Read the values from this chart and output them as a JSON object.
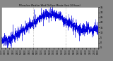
{
  "title": "Milwaukee Weather Wind Chill per Minute (Last 24 Hours)",
  "line_color": "#0000dd",
  "background_color": "#888888",
  "plot_bg_color": "#ffffff",
  "ylim": [
    -5,
    35
  ],
  "ytick_values": [
    -5,
    0,
    5,
    10,
    15,
    20,
    25,
    30,
    35
  ],
  "ytick_labels": [
    "-5",
    "0",
    "5",
    "10",
    "15",
    "20",
    "25",
    "30",
    "35"
  ],
  "num_points": 1440,
  "seed": 42,
  "vline_positions": [
    480,
    960
  ],
  "vline_color": "#aaaaaa",
  "figsize": [
    1.6,
    0.87
  ],
  "dpi": 100
}
